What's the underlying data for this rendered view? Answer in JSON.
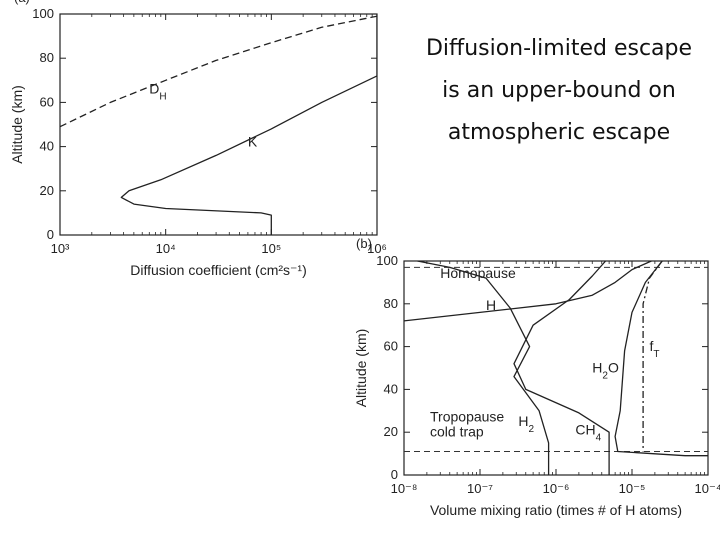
{
  "caption": {
    "line1": "Diffusion-limited escape",
    "line2": "is an upper-bound on",
    "line3": "atmospheric escape"
  },
  "chart_data": [
    {
      "type": "line",
      "panel_label": "(a)",
      "xlabel": "Diffusion coefficient (cm²s⁻¹)",
      "ylabel": "Altitude (km)",
      "xscale": "log",
      "xlim": [
        1000,
        1000000
      ],
      "ylim": [
        0,
        100
      ],
      "x_ticks": [
        {
          "value": 1000,
          "label": "10³"
        },
        {
          "value": 10000,
          "label": "10⁴"
        },
        {
          "value": 100000,
          "label": "10⁵"
        },
        {
          "value": 1000000,
          "label": "10⁶"
        }
      ],
      "y_ticks": [
        0,
        20,
        40,
        60,
        80,
        100
      ],
      "series": [
        {
          "name": "DH",
          "style": "dashed",
          "points": [
            [
              1000,
              49
            ],
            [
              3000,
              60
            ],
            [
              10000,
              70
            ],
            [
              30000,
              79
            ],
            [
              100000,
              87
            ],
            [
              300000,
              94
            ],
            [
              1000000,
              99
            ],
            [
              1400000,
              100
            ]
          ]
        },
        {
          "name": "K",
          "style": "solid",
          "points": [
            [
              100000,
              0
            ],
            [
              100000,
              9
            ],
            [
              80000,
              10
            ],
            [
              10000,
              12
            ],
            [
              5000,
              14
            ],
            [
              3800,
              17
            ],
            [
              4500,
              20
            ],
            [
              9000,
              25
            ],
            [
              30000,
              36
            ],
            [
              100000,
              48
            ],
            [
              300000,
              60
            ],
            [
              1000000,
              72
            ],
            [
              1000000,
              100
            ]
          ]
        }
      ],
      "annotations": [
        {
          "text": "D",
          "sub": "H",
          "x": 7000,
          "y": 64
        },
        {
          "text": "K",
          "x": 60000,
          "y": 40
        }
      ]
    },
    {
      "type": "line",
      "panel_label": "(b)",
      "xlabel": "Volume mixing ratio (times # of H atoms)",
      "ylabel": "Altitude (km)",
      "xscale": "log",
      "xlim": [
        1e-08,
        0.0001
      ],
      "ylim": [
        0,
        100
      ],
      "x_ticks": [
        {
          "value": 1e-08,
          "label": "10⁻⁸"
        },
        {
          "value": 1e-07,
          "label": "10⁻⁷"
        },
        {
          "value": 1e-06,
          "label": "10⁻⁶"
        },
        {
          "value": 1e-05,
          "label": "10⁻⁵"
        },
        {
          "value": 0.0001,
          "label": "10⁻⁴"
        }
      ],
      "y_ticks": [
        0,
        20,
        40,
        60,
        80,
        100
      ],
      "reference_lines": [
        {
          "name": "Homopause",
          "y": 97,
          "style": "dashed"
        },
        {
          "name": "Tropopause cold trap",
          "y": 11,
          "style": "dashed"
        }
      ],
      "series": [
        {
          "name": "H",
          "style": "solid",
          "points": [
            [
              1e-08,
              72
            ],
            [
              1e-07,
              76
            ],
            [
              1e-06,
              80
            ],
            [
              3e-06,
              84
            ],
            [
              6e-06,
              90
            ],
            [
              1e-05,
              96
            ],
            [
              1.8e-05,
              100
            ]
          ]
        },
        {
          "name": "H₂",
          "style": "solid",
          "points": [
            [
              1.5e-08,
              100
            ],
            [
              4e-08,
              97
            ],
            [
              1.2e-07,
              92
            ],
            [
              2.5e-07,
              78
            ],
            [
              4.5e-07,
              60
            ],
            [
              2.8e-07,
              46
            ],
            [
              6e-07,
              30
            ],
            [
              8e-07,
              15
            ],
            [
              8e-07,
              0
            ]
          ]
        },
        {
          "name": "CH₄",
          "style": "solid",
          "points": [
            [
              4.5e-06,
              100
            ],
            [
              3e-06,
              93
            ],
            [
              1.5e-06,
              82
            ],
            [
              5e-07,
              70
            ],
            [
              2.8e-07,
              52
            ],
            [
              4e-07,
              40
            ],
            [
              2e-06,
              29
            ],
            [
              5e-06,
              20
            ],
            [
              5e-06,
              0
            ]
          ]
        },
        {
          "name": "H₂O",
          "style": "solid",
          "points": [
            [
              2.5e-05,
              100
            ],
            [
              1.5e-05,
              90
            ],
            [
              1e-05,
              76
            ],
            [
              8e-06,
              58
            ],
            [
              7e-06,
              30
            ],
            [
              6e-06,
              18
            ],
            [
              6.5e-06,
              11
            ],
            [
              5e-05,
              9
            ],
            [
              0.0001,
              9
            ]
          ]
        },
        {
          "name": "fT",
          "style": "dashdot",
          "points": [
            [
              2.5e-05,
              100
            ],
            [
              1.7e-05,
              92
            ],
            [
              1.4e-05,
              80
            ],
            [
              1.4e-05,
              11
            ]
          ]
        }
      ],
      "annotations": [
        {
          "text": "Homopause",
          "x": 3e-08,
          "y": 92
        },
        {
          "text": "H",
          "x": 1.2e-07,
          "y": 77
        },
        {
          "text": "f",
          "sub": "T",
          "x": 1.7e-05,
          "y": 58
        },
        {
          "text": "H",
          "sub": "2",
          "post": "O",
          "x": 3e-06,
          "y": 48
        },
        {
          "text": "Tropopause",
          "x": 2.2e-08,
          "y": 25
        },
        {
          "text": "cold trap",
          "x": 2.2e-08,
          "y": 18
        },
        {
          "text": "H",
          "sub": "2",
          "x": 3.2e-07,
          "y": 23
        },
        {
          "text": "CH",
          "sub": "4",
          "x": 1.8e-06,
          "y": 19
        }
      ]
    }
  ]
}
